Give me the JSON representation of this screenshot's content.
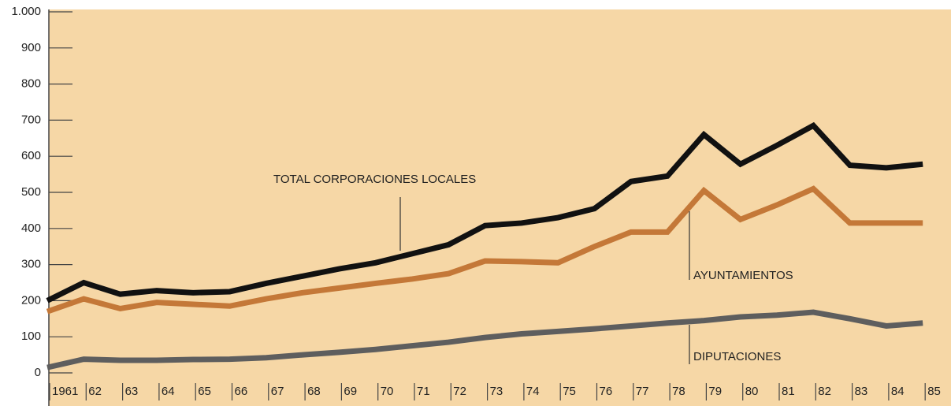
{
  "chart_data": {
    "type": "line",
    "categories": [
      "1961",
      "62",
      "63",
      "64",
      "65",
      "66",
      "67",
      "68",
      "69",
      "70",
      "71",
      "72",
      "73",
      "74",
      "75",
      "76",
      "77",
      "78",
      "79",
      "80",
      "81",
      "82",
      "83",
      "84",
      "85"
    ],
    "series": [
      {
        "name": "TOTAL CORPORACIONES LOCALES",
        "color": "#111111",
        "values": [
          200,
          250,
          218,
          228,
          222,
          225,
          248,
          268,
          288,
          305,
          330,
          355,
          408,
          415,
          430,
          455,
          530,
          545,
          660,
          578,
          630,
          685,
          575,
          568,
          578
        ]
      },
      {
        "name": "AYUNTAMIENTOS",
        "color": "#c47838",
        "values": [
          170,
          205,
          178,
          195,
          190,
          185,
          205,
          222,
          235,
          248,
          260,
          275,
          310,
          308,
          305,
          350,
          390,
          390,
          505,
          425,
          465,
          510,
          415,
          415,
          415
        ]
      },
      {
        "name": "DIPUTACIONES",
        "color": "#5e5e5e",
        "values": [
          15,
          38,
          35,
          35,
          37,
          38,
          42,
          50,
          57,
          65,
          75,
          85,
          98,
          108,
          115,
          122,
          130,
          138,
          145,
          155,
          160,
          168,
          150,
          130,
          138
        ]
      }
    ],
    "ylim": [
      0,
      1000
    ],
    "yticks": [
      0,
      100,
      200,
      300,
      400,
      500,
      600,
      700,
      800,
      900,
      {
        "value": 1000,
        "label": "1.000"
      }
    ]
  }
}
